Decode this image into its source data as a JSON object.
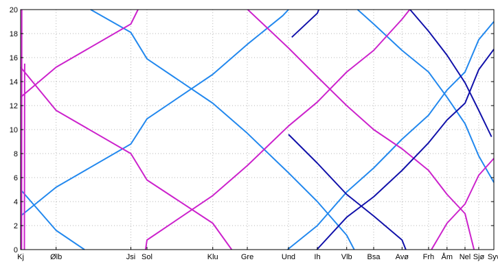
{
  "chart_data": {
    "type": "line",
    "title": "",
    "xlabel": "",
    "ylabel": "",
    "x_domain": [
      0,
      100
    ],
    "ylim": [
      0,
      20
    ],
    "y_ticks": [
      0,
      2,
      4,
      6,
      8,
      10,
      12,
      14,
      16,
      18,
      20
    ],
    "grid": true,
    "grid_style": "dotted",
    "x_ticks": [
      {
        "label": "Kj",
        "x": 0.0
      },
      {
        "label": "Ølb",
        "x": 7.5
      },
      {
        "label": "Jsi",
        "x": 23.3
      },
      {
        "label": "Sol",
        "x": 26.7
      },
      {
        "label": "Klu",
        "x": 40.6
      },
      {
        "label": "Gre",
        "x": 47.9
      },
      {
        "label": "Und",
        "x": 56.6
      },
      {
        "label": "Ih",
        "x": 62.7
      },
      {
        "label": "Vlb",
        "x": 68.9
      },
      {
        "label": "Bsa",
        "x": 74.6
      },
      {
        "label": "Avø",
        "x": 80.6
      },
      {
        "label": "Frh",
        "x": 86.2
      },
      {
        "label": "Åm",
        "x": 90.1
      },
      {
        "label": "Nel",
        "x": 93.9
      },
      {
        "label": "Sjø",
        "x": 96.8
      },
      {
        "label": "Syv",
        "x": 100.0
      }
    ],
    "colors": {
      "magenta": "#cc22cc",
      "lightblue": "#2288ee",
      "darkblue": "#1111aa"
    },
    "series": [
      {
        "color": "lightblue",
        "points": [
          [
            0,
            5.0
          ],
          [
            7.5,
            1.6
          ],
          [
            13.5,
            0
          ]
        ]
      },
      {
        "color": "lightblue",
        "points": [
          [
            0,
            2.8
          ],
          [
            7.5,
            5.2
          ],
          [
            23.3,
            8.8
          ],
          [
            26.7,
            10.9
          ],
          [
            40.6,
            14.6
          ],
          [
            47.9,
            17.1
          ],
          [
            55.4,
            19.5
          ],
          [
            56.6,
            20
          ]
        ]
      },
      {
        "color": "lightblue",
        "points": [
          [
            14.8,
            20
          ],
          [
            23.3,
            18.1
          ],
          [
            26.7,
            15.9
          ],
          [
            40.6,
            12.2
          ],
          [
            47.9,
            9.7
          ],
          [
            56.6,
            6.4
          ],
          [
            62.7,
            4.0
          ],
          [
            68.9,
            1.2
          ],
          [
            70.5,
            0
          ]
        ]
      },
      {
        "color": "lightblue",
        "points": [
          [
            56.4,
            0
          ],
          [
            62.7,
            2.0
          ],
          [
            68.9,
            4.8
          ],
          [
            74.6,
            6.8
          ],
          [
            80.6,
            9.2
          ],
          [
            86.2,
            11.2
          ],
          [
            90.1,
            13.3
          ],
          [
            93.9,
            14.8
          ],
          [
            96.8,
            17.5
          ],
          [
            100,
            19.0
          ]
        ]
      },
      {
        "color": "lightblue",
        "points": [
          [
            71.2,
            20
          ],
          [
            74.6,
            18.8
          ],
          [
            80.6,
            16.6
          ],
          [
            86.2,
            14.8
          ],
          [
            90.1,
            12.7
          ],
          [
            93.9,
            10.5
          ],
          [
            96.8,
            7.8
          ],
          [
            100,
            5.6
          ]
        ]
      },
      {
        "color": "magenta",
        "points": [
          [
            0,
            15.2
          ],
          [
            7.5,
            11.6
          ],
          [
            23.3,
            8.0
          ],
          [
            26.7,
            5.8
          ],
          [
            40.6,
            2.2
          ],
          [
            44.6,
            0
          ]
        ]
      },
      {
        "color": "magenta",
        "points": [
          [
            0,
            12.7
          ],
          [
            7.5,
            15.2
          ],
          [
            23.3,
            18.8
          ],
          [
            24.8,
            20
          ]
        ]
      },
      {
        "color": "magenta",
        "points": [
          [
            26.4,
            0
          ],
          [
            26.7,
            0.8
          ],
          [
            40.6,
            4.5
          ],
          [
            47.9,
            7.0
          ],
          [
            56.6,
            10.3
          ],
          [
            62.7,
            12.3
          ],
          [
            68.9,
            14.8
          ],
          [
            74.6,
            16.6
          ],
          [
            80.6,
            19.2
          ],
          [
            82.2,
            20
          ]
        ]
      },
      {
        "color": "magenta",
        "points": [
          [
            48.0,
            20
          ],
          [
            56.6,
            16.8
          ],
          [
            62.7,
            14.4
          ],
          [
            68.9,
            12.0
          ],
          [
            74.6,
            10.0
          ],
          [
            80.6,
            8.4
          ],
          [
            86.2,
            6.6
          ],
          [
            90.1,
            4.6
          ],
          [
            93.9,
            3.0
          ],
          [
            95.8,
            0
          ]
        ]
      },
      {
        "color": "magenta",
        "points": [
          [
            86.8,
            0
          ],
          [
            90.1,
            2.2
          ],
          [
            93.9,
            3.8
          ],
          [
            96.8,
            6.2
          ],
          [
            100,
            7.6
          ]
        ]
      },
      {
        "color": "magenta",
        "points": [
          [
            0.2,
            0
          ],
          [
            0.25,
            20
          ]
        ]
      },
      {
        "color": "magenta",
        "points": [
          [
            0.8,
            0
          ],
          [
            0.85,
            15.5
          ]
        ]
      },
      {
        "color": "darkblue",
        "points": [
          [
            56.6,
            9.6
          ],
          [
            62.7,
            7.2
          ],
          [
            68.9,
            4.6
          ],
          [
            74.6,
            2.8
          ],
          [
            80.6,
            0.8
          ],
          [
            81.4,
            0
          ]
        ]
      },
      {
        "color": "darkblue",
        "points": [
          [
            62.6,
            0
          ],
          [
            68.9,
            2.7
          ],
          [
            74.6,
            4.4
          ],
          [
            80.6,
            6.6
          ],
          [
            86.2,
            8.9
          ],
          [
            90.1,
            10.8
          ],
          [
            93.9,
            12.2
          ],
          [
            96.8,
            15.0
          ],
          [
            100,
            16.7
          ]
        ]
      },
      {
        "color": "darkblue",
        "points": [
          [
            57.3,
            17.7
          ],
          [
            62.7,
            19.7
          ],
          [
            63.0,
            20
          ]
        ]
      },
      {
        "color": "darkblue",
        "points": [
          [
            82.3,
            20
          ],
          [
            86.2,
            18.2
          ],
          [
            90.1,
            16.2
          ],
          [
            93.9,
            13.9
          ],
          [
            96.8,
            11.6
          ],
          [
            99.5,
            9.4
          ]
        ]
      }
    ]
  }
}
